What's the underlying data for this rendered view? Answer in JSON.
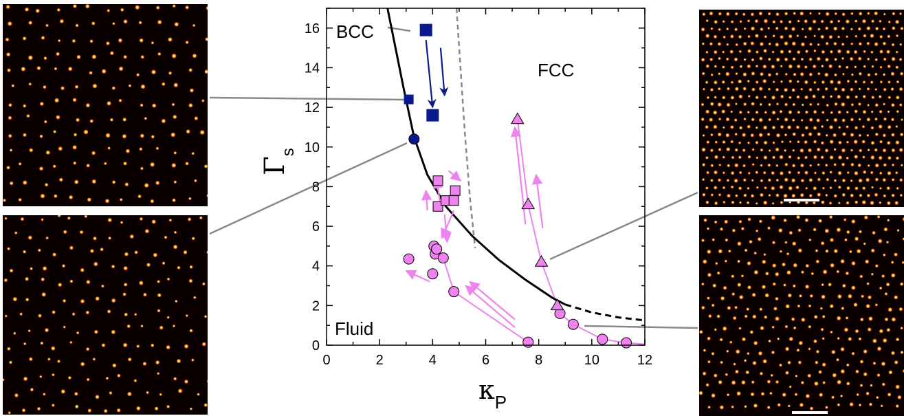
{
  "chart_data": {
    "type": "scatter",
    "title": "",
    "xlabel": "κ",
    "xlabel_sub": "P",
    "ylabel": "Γ",
    "ylabel_sub": "s",
    "xlim": [
      0,
      12
    ],
    "ylim": [
      0,
      17
    ],
    "xticks": [
      "0",
      "2",
      "4",
      "6",
      "8",
      "10",
      "12"
    ],
    "yticks": [
      "0",
      "2",
      "4",
      "6",
      "8",
      "10",
      "12",
      "14",
      "16"
    ],
    "region_labels": {
      "bcc": "BCC",
      "fcc": "FCC",
      "fluid": "Fluid"
    },
    "colors": {
      "blue": "#0a1a8c",
      "pink": "#ee82ee",
      "black": "#000000",
      "gray": "#888888",
      "micro_bg": "#0a0000"
    },
    "melting_curve": {
      "solid": [
        [
          2.3,
          17.0
        ],
        [
          2.6,
          15.0
        ],
        [
          2.9,
          13.0
        ],
        [
          3.3,
          10.5
        ],
        [
          3.8,
          8.6
        ],
        [
          4.5,
          7.0
        ],
        [
          5.5,
          5.5
        ],
        [
          6.5,
          4.3
        ],
        [
          7.5,
          3.3
        ],
        [
          8.5,
          2.4
        ],
        [
          9.0,
          2.05
        ]
      ],
      "dashed": [
        [
          9.0,
          2.05
        ],
        [
          10.0,
          1.65
        ],
        [
          11.0,
          1.4
        ],
        [
          12.0,
          1.25
        ]
      ]
    },
    "bcc_fcc_boundary": [
      [
        4.9,
        17.0
      ],
      [
        5.2,
        11.0
      ],
      [
        5.4,
        7.5
      ],
      [
        5.6,
        4.9
      ]
    ],
    "series": [
      {
        "marker": "square",
        "color": "blue",
        "size": "small",
        "points": [
          [
            3.1,
            12.4
          ]
        ]
      },
      {
        "marker": "square",
        "color": "blue",
        "size": "large",
        "points": [
          [
            3.75,
            15.9
          ],
          [
            4.0,
            11.6
          ]
        ]
      },
      {
        "marker": "circle",
        "color": "blue",
        "points": [
          [
            3.3,
            10.4
          ]
        ]
      },
      {
        "marker": "square",
        "color": "pink",
        "points": [
          [
            4.2,
            8.3
          ],
          [
            4.2,
            7.0
          ],
          [
            4.5,
            7.3
          ],
          [
            4.8,
            7.3
          ],
          [
            4.85,
            7.8
          ]
        ]
      },
      {
        "marker": "circle",
        "color": "pink",
        "points": [
          [
            3.1,
            4.35
          ],
          [
            4.0,
            3.6
          ],
          [
            4.05,
            5.0
          ],
          [
            4.1,
            4.6
          ],
          [
            4.15,
            4.85
          ],
          [
            4.4,
            4.4
          ],
          [
            4.8,
            2.7
          ],
          [
            7.6,
            0.15
          ],
          [
            8.8,
            1.6
          ],
          [
            9.3,
            1.05
          ],
          [
            10.4,
            0.3
          ],
          [
            11.3,
            0.12
          ]
        ]
      },
      {
        "marker": "triangle",
        "color": "pink",
        "points": [
          [
            7.2,
            11.4
          ],
          [
            7.6,
            7.1
          ],
          [
            8.1,
            4.2
          ],
          [
            8.7,
            2.0
          ]
        ]
      }
    ],
    "trajectories": [
      {
        "color": "pink",
        "points": [
          [
            7.2,
            11.4
          ],
          [
            7.6,
            7.1
          ],
          [
            8.1,
            4.2
          ],
          [
            8.7,
            2.0
          ],
          [
            8.8,
            1.6
          ],
          [
            9.3,
            1.05
          ],
          [
            10.4,
            0.3
          ],
          [
            11.3,
            0.12
          ],
          [
            12.0,
            0.05
          ]
        ]
      },
      {
        "color": "pink",
        "points": [
          [
            4.1,
            4.6
          ],
          [
            4.4,
            4.4
          ],
          [
            4.8,
            2.7
          ],
          [
            7.6,
            0.15
          ]
        ]
      }
    ],
    "arrows": [
      {
        "color": "blue",
        "from": [
          3.75,
          15.4
        ],
        "to": [
          4.0,
          12.0
        ]
      },
      {
        "color": "blue",
        "from": [
          4.3,
          15.0
        ],
        "to": [
          4.45,
          12.6
        ]
      },
      {
        "color": "pink",
        "from": [
          7.5,
          6.1
        ],
        "to": [
          7.1,
          11.0
        ]
      },
      {
        "color": "pink",
        "from": [
          8.15,
          5.9
        ],
        "to": [
          7.9,
          8.6
        ]
      },
      {
        "color": "pink",
        "from": [
          4.3,
          7.0
        ],
        "to": [
          4.15,
          8.4
        ]
      },
      {
        "color": "pink",
        "from": [
          4.6,
          8.8
        ],
        "to": [
          5.05,
          8.3
        ]
      },
      {
        "color": "pink",
        "from": [
          3.8,
          6.8
        ],
        "to": [
          3.75,
          7.8
        ]
      },
      {
        "color": "pink",
        "from": [
          4.8,
          6.8
        ],
        "to": [
          4.35,
          5.4
        ]
      },
      {
        "color": "pink",
        "from": [
          4.45,
          6.6
        ],
        "to": [
          4.55,
          5.2
        ]
      },
      {
        "color": "pink",
        "from": [
          3.9,
          3.2
        ],
        "to": [
          3.0,
          3.75
        ]
      },
      {
        "color": "pink",
        "from": [
          7.1,
          0.9
        ],
        "to": [
          5.25,
          3.0
        ]
      },
      {
        "color": "pink",
        "from": [
          7.1,
          1.3
        ],
        "to": [
          5.4,
          3.2
        ]
      }
    ],
    "grid": false,
    "legend": "none"
  }
}
